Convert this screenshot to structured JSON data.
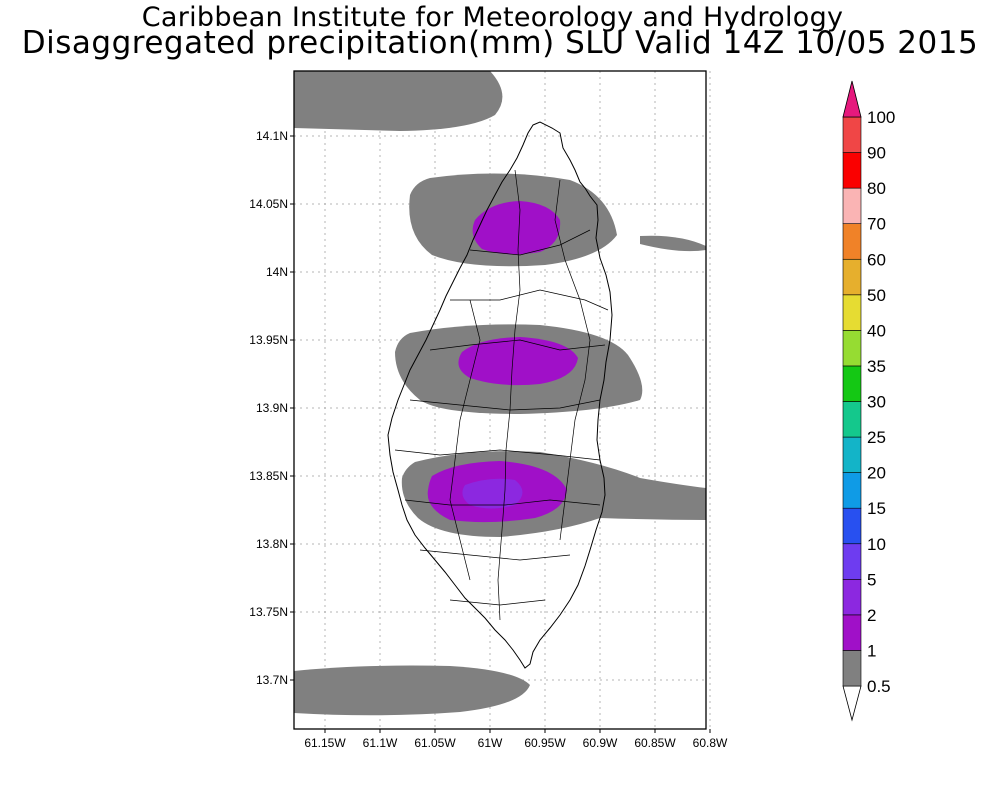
{
  "title": {
    "line1": "Caribbean Institute for Meteorology and Hydrology",
    "line2": "Disaggregated precipitation(mm) SLU Valid 14Z 10/05 2015"
  },
  "map": {
    "lat_labels": [
      {
        "lat": 14.1,
        "label": "14.1N"
      },
      {
        "lat": 14.05,
        "label": "14.05N"
      },
      {
        "lat": 14.0,
        "label": "14N"
      },
      {
        "lat": 13.95,
        "label": "13.95N"
      },
      {
        "lat": 13.9,
        "label": "13.9N"
      },
      {
        "lat": 13.85,
        "label": "13.85N"
      },
      {
        "lat": 13.8,
        "label": "13.8N"
      },
      {
        "lat": 13.75,
        "label": "13.75N"
      },
      {
        "lat": 13.7,
        "label": "13.7N"
      }
    ],
    "lon_labels": [
      {
        "lon": -61.15,
        "label": "61.15W"
      },
      {
        "lon": -61.1,
        "label": "61.1W"
      },
      {
        "lon": -61.05,
        "label": "61.05W"
      },
      {
        "lon": -61.0,
        "label": "61W"
      },
      {
        "lon": -60.95,
        "label": "60.95W"
      },
      {
        "lon": -60.9,
        "label": "60.9W"
      },
      {
        "lon": -60.85,
        "label": "60.85W"
      },
      {
        "lon": -60.8,
        "label": "60.8W"
      }
    ],
    "colors": {
      "band_0_5_1": "#808080",
      "band_1_2": "#a010c8",
      "band_2_5": "#8c28e0",
      "coast": "#000000",
      "grid": "#b4b4b4"
    }
  },
  "colorbar": {
    "levels": [
      {
        "label": "0.5",
        "color": "#ffffff"
      },
      {
        "label": "1",
        "color": "#808080"
      },
      {
        "label": "2",
        "color": "#a010c8"
      },
      {
        "label": "5",
        "color": "#8c28e0"
      },
      {
        "label": "10",
        "color": "#6e3cf0"
      },
      {
        "label": "15",
        "color": "#2850f0"
      },
      {
        "label": "20",
        "color": "#0f9be6"
      },
      {
        "label": "25",
        "color": "#13b4c8"
      },
      {
        "label": "30",
        "color": "#14c88c"
      },
      {
        "label": "35",
        "color": "#14c814"
      },
      {
        "label": "40",
        "color": "#96dc32"
      },
      {
        "label": "50",
        "color": "#e6dc32"
      },
      {
        "label": "60",
        "color": "#e6af2d"
      },
      {
        "label": "70",
        "color": "#f08228"
      },
      {
        "label": "80",
        "color": "#fab4b4"
      },
      {
        "label": "90",
        "color": "#fa0000"
      },
      {
        "label": "100",
        "color": "#f04646"
      }
    ],
    "top_arrow_color": "#e6197d"
  }
}
